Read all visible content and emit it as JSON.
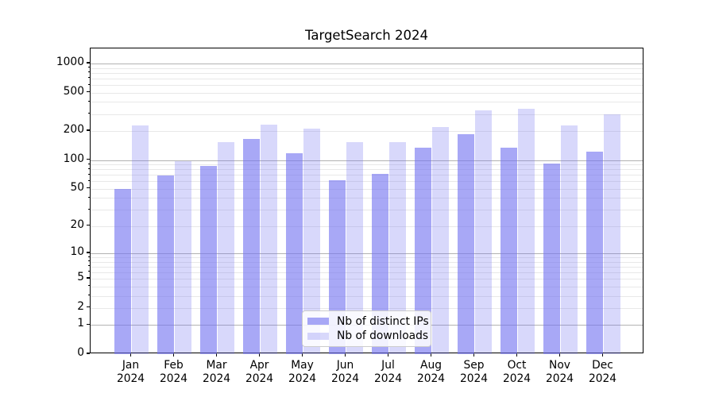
{
  "chart_data": {
    "type": "bar",
    "title": "TargetSearch 2024",
    "categories": [
      [
        "Jan",
        "2024"
      ],
      [
        "Feb",
        "2024"
      ],
      [
        "Mar",
        "2024"
      ],
      [
        "Apr",
        "2024"
      ],
      [
        "May",
        "2024"
      ],
      [
        "Jun",
        "2024"
      ],
      [
        "Jul",
        "2024"
      ],
      [
        "Aug",
        "2024"
      ],
      [
        "Sep",
        "2024"
      ],
      [
        "Oct",
        "2024"
      ],
      [
        "Nov",
        "2024"
      ],
      [
        "Dec",
        "2024"
      ]
    ],
    "series": [
      {
        "name": "Nb of distinct IPs",
        "values": [
          50,
          69,
          86,
          165,
          118,
          61,
          71,
          134,
          185,
          134,
          92,
          122
        ],
        "color_css": "rgba(115,115,240,0.62)",
        "color_on_white_hex": "#a8a8f5"
      },
      {
        "name": "Nb of downloads",
        "values": [
          228,
          97,
          154,
          234,
          210,
          154,
          154,
          222,
          328,
          340,
          227,
          296
        ],
        "color_css": "rgba(115,115,240,0.28)",
        "color_on_white_hex": "#d9d9fa"
      }
    ],
    "xlabel": "",
    "ylabel": "",
    "yscale": "symlog (position = log10(value+1))",
    "ylim": [
      0,
      1430
    ],
    "yticks": [
      0,
      1,
      2,
      5,
      10,
      20,
      50,
      100,
      200,
      500,
      1000
    ],
    "grid": "on (dark major gridlines at 1,10,100,1000; light minor gridlines at 2-9 multiples)",
    "legend": {
      "position": "lower center",
      "entries": [
        "Nb of distinct IPs",
        "Nb of downloads"
      ]
    },
    "colors": {
      "axis_spine": "#000000",
      "major_grid": "#b2b2b2",
      "minor_grid": "#e8e8e8",
      "legend_border": "#cccccc"
    }
  }
}
